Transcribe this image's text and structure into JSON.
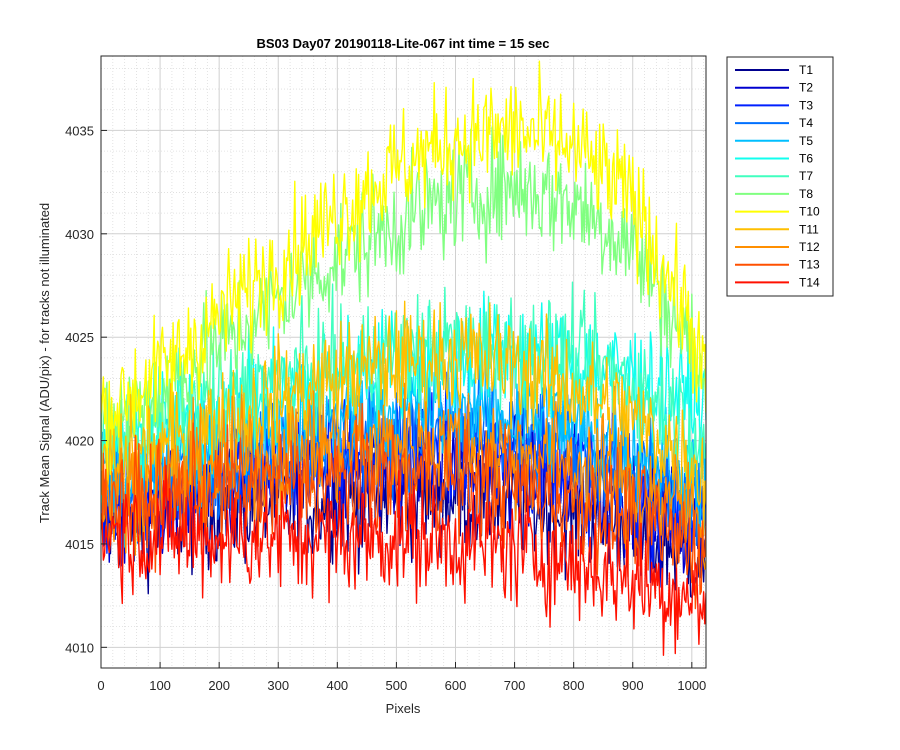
{
  "chart_data": {
    "type": "line",
    "title": "BS03 Day07 20190118-Lite-067 int time = 15 sec",
    "xlabel": "Pixels",
    "ylabel": "Track Mean Signal (ADU/pix) - for tracks not illuminated",
    "xlim": [
      0,
      1024
    ],
    "ylim": [
      4009,
      4038.6
    ],
    "xticks": [
      0,
      100,
      200,
      300,
      400,
      500,
      600,
      700,
      800,
      900,
      1000
    ],
    "yticks": [
      4010,
      4015,
      4020,
      4025,
      4030,
      4035
    ],
    "grid": true,
    "minor_grid": true,
    "legend_position": "outside-right",
    "series": [
      {
        "name": "T1",
        "color": "#00008F",
        "values": [
          [
            0,
            4016.0
          ],
          [
            100,
            4016.2
          ],
          [
            200,
            4016.6
          ],
          [
            300,
            4016.8
          ],
          [
            400,
            4017.0
          ],
          [
            500,
            4017.2
          ],
          [
            600,
            4017.3
          ],
          [
            700,
            4017.0
          ],
          [
            800,
            4016.5
          ],
          [
            900,
            4015.6
          ],
          [
            1000,
            4014.5
          ],
          [
            1024,
            4014.0
          ]
        ]
      },
      {
        "name": "T2",
        "color": "#0000CF",
        "values": [
          [
            0,
            4016.5
          ],
          [
            100,
            4017.0
          ],
          [
            200,
            4017.5
          ],
          [
            300,
            4018.0
          ],
          [
            400,
            4018.4
          ],
          [
            500,
            4018.7
          ],
          [
            600,
            4018.8
          ],
          [
            700,
            4018.5
          ],
          [
            800,
            4017.8
          ],
          [
            900,
            4016.9
          ],
          [
            1000,
            4015.6
          ],
          [
            1024,
            4015.0
          ]
        ]
      },
      {
        "name": "T3",
        "color": "#0020FF",
        "values": [
          [
            0,
            4017.0
          ],
          [
            100,
            4017.7
          ],
          [
            200,
            4018.4
          ],
          [
            300,
            4019.0
          ],
          [
            400,
            4019.4
          ],
          [
            500,
            4019.7
          ],
          [
            600,
            4019.8
          ],
          [
            700,
            4019.4
          ],
          [
            800,
            4018.7
          ],
          [
            900,
            4017.7
          ],
          [
            1000,
            4016.4
          ],
          [
            1024,
            4015.8
          ]
        ]
      },
      {
        "name": "T4",
        "color": "#0070FF",
        "values": [
          [
            0,
            4017.6
          ],
          [
            100,
            4018.3
          ],
          [
            200,
            4019.0
          ],
          [
            300,
            4019.6
          ],
          [
            400,
            4020.1
          ],
          [
            500,
            4020.4
          ],
          [
            600,
            4020.5
          ],
          [
            700,
            4020.2
          ],
          [
            800,
            4019.5
          ],
          [
            900,
            4018.5
          ],
          [
            1000,
            4017.1
          ],
          [
            1024,
            4016.5
          ]
        ]
      },
      {
        "name": "T5",
        "color": "#00BFFF",
        "values": [
          [
            0,
            4018.2
          ],
          [
            100,
            4019.0
          ],
          [
            200,
            4019.8
          ],
          [
            300,
            4020.5
          ],
          [
            400,
            4021.0
          ],
          [
            500,
            4021.4
          ],
          [
            600,
            4021.6
          ],
          [
            700,
            4021.3
          ],
          [
            800,
            4020.6
          ],
          [
            900,
            4019.6
          ],
          [
            1000,
            4018.3
          ],
          [
            1024,
            4017.6
          ]
        ]
      },
      {
        "name": "T6",
        "color": "#10FFEF",
        "values": [
          [
            0,
            4019.5
          ],
          [
            100,
            4020.5
          ],
          [
            200,
            4021.5
          ],
          [
            300,
            4022.4
          ],
          [
            400,
            4023.2
          ],
          [
            500,
            4023.8
          ],
          [
            600,
            4024.2
          ],
          [
            700,
            4024.2
          ],
          [
            800,
            4023.8
          ],
          [
            900,
            4023.1
          ],
          [
            1000,
            4022.0
          ],
          [
            1024,
            4021.3
          ]
        ]
      },
      {
        "name": "T7",
        "color": "#40FFBF",
        "values": [
          [
            0,
            4019.8
          ],
          [
            100,
            4020.8
          ],
          [
            200,
            4021.8
          ],
          [
            300,
            4022.8
          ],
          [
            400,
            4023.6
          ],
          [
            500,
            4024.2
          ],
          [
            600,
            4024.6
          ],
          [
            700,
            4024.5
          ],
          [
            800,
            4024.0
          ],
          [
            900,
            4022.8
          ],
          [
            1000,
            4020.6
          ],
          [
            1024,
            4019.5
          ]
        ]
      },
      {
        "name": "T8",
        "color": "#80FF80",
        "values": [
          [
            0,
            4020.5
          ],
          [
            100,
            4022.3
          ],
          [
            200,
            4024.6
          ],
          [
            300,
            4026.8
          ],
          [
            400,
            4028.8
          ],
          [
            500,
            4030.5
          ],
          [
            600,
            4031.8
          ],
          [
            700,
            4032.3
          ],
          [
            800,
            4031.5
          ],
          [
            900,
            4029.4
          ],
          [
            1000,
            4024.5
          ],
          [
            1024,
            4022.0
          ]
        ]
      },
      {
        "name": "T10",
        "color": "#FFFF00",
        "values": [
          [
            0,
            4021.2
          ],
          [
            100,
            4023.2
          ],
          [
            200,
            4026.0
          ],
          [
            300,
            4028.6
          ],
          [
            400,
            4031.0
          ],
          [
            500,
            4033.2
          ],
          [
            600,
            4034.6
          ],
          [
            700,
            4035.0
          ],
          [
            800,
            4034.2
          ],
          [
            900,
            4031.6
          ],
          [
            1000,
            4025.5
          ],
          [
            1024,
            4022.4
          ]
        ]
      },
      {
        "name": "T11",
        "color": "#FFBF00",
        "values": [
          [
            0,
            4018.5
          ],
          [
            100,
            4019.6
          ],
          [
            200,
            4020.8
          ],
          [
            300,
            4022.0
          ],
          [
            400,
            4023.0
          ],
          [
            500,
            4023.8
          ],
          [
            600,
            4024.1
          ],
          [
            700,
            4023.6
          ],
          [
            800,
            4022.5
          ],
          [
            900,
            4021.0
          ],
          [
            1000,
            4019.0
          ],
          [
            1024,
            4018.0
          ]
        ]
      },
      {
        "name": "T12",
        "color": "#FF8F00",
        "values": [
          [
            0,
            4017.3
          ],
          [
            100,
            4018.0
          ],
          [
            200,
            4018.7
          ],
          [
            300,
            4019.3
          ],
          [
            400,
            4019.7
          ],
          [
            500,
            4019.9
          ],
          [
            600,
            4019.9
          ],
          [
            700,
            4019.5
          ],
          [
            800,
            4018.8
          ],
          [
            900,
            4017.8
          ],
          [
            1000,
            4016.5
          ],
          [
            1024,
            4015.8
          ]
        ]
      },
      {
        "name": "T13",
        "color": "#FF5000",
        "values": [
          [
            0,
            4016.8
          ],
          [
            100,
            4017.2
          ],
          [
            200,
            4017.6
          ],
          [
            300,
            4017.9
          ],
          [
            400,
            4018.1
          ],
          [
            500,
            4018.2
          ],
          [
            600,
            4018.1
          ],
          [
            700,
            4017.7
          ],
          [
            800,
            4017.1
          ],
          [
            900,
            4016.2
          ],
          [
            1000,
            4015.0
          ],
          [
            1024,
            4014.4
          ]
        ]
      },
      {
        "name": "T14",
        "color": "#FF1000",
        "values": [
          [
            0,
            4015.6
          ],
          [
            100,
            4015.4
          ],
          [
            200,
            4015.3
          ],
          [
            300,
            4015.3
          ],
          [
            400,
            4015.3
          ],
          [
            500,
            4015.3
          ],
          [
            600,
            4015.1
          ],
          [
            700,
            4014.7
          ],
          [
            800,
            4014.1
          ],
          [
            900,
            4013.3
          ],
          [
            1000,
            4012.4
          ],
          [
            1024,
            4012.0
          ]
        ]
      }
    ]
  }
}
